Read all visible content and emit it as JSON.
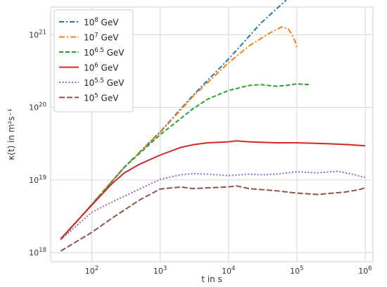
{
  "chart_data": {
    "type": "line",
    "xscale": "log",
    "yscale": "log",
    "xlabel": "t in s",
    "ylabel": "κ(t) in m²s⁻¹",
    "xlim": [
      25,
      1300000
    ],
    "ylim": [
      750000000000000000,
      2400000000000000000000
    ],
    "grid": true,
    "legend_position": "top-left",
    "x_ticks": [
      {
        "value": 100,
        "base": "10",
        "exp": "2"
      },
      {
        "value": 1000,
        "base": "10",
        "exp": "3"
      },
      {
        "value": 10000,
        "base": "10",
        "exp": "4"
      },
      {
        "value": 100000,
        "base": "10",
        "exp": "5"
      },
      {
        "value": 1000000,
        "base": "10",
        "exp": "6"
      }
    ],
    "y_ticks": [
      {
        "value": 1e+18,
        "base": "10",
        "exp": "18"
      },
      {
        "value": 1e+19,
        "base": "10",
        "exp": "19"
      },
      {
        "value": 1e+20,
        "base": "10",
        "exp": "20"
      },
      {
        "value": 1e+21,
        "base": "10",
        "exp": "21"
      }
    ],
    "series": [
      {
        "name": "10^8 GeV",
        "label_base": "10",
        "label_exp": "8",
        "label_unit": " GeV",
        "color": "#1f77b4",
        "dash": "7,3,2,3",
        "width": 2,
        "points": [
          [
            35,
            1.5e+18
          ],
          [
            100,
            4.6e+18
          ],
          [
            300,
            1.5e+19
          ],
          [
            1000,
            4.6e+19
          ],
          [
            3000,
            1.45e+20
          ],
          [
            10000,
            4.6e+20
          ],
          [
            30000,
            1.45e+21
          ],
          [
            70000,
            3e+21
          ]
        ]
      },
      {
        "name": "10^7 GeV",
        "label_base": "10",
        "label_exp": "7",
        "label_unit": " GeV",
        "color": "#ff7f0e",
        "dash": "8,3,2,3",
        "width": 2,
        "points": [
          [
            35,
            1.5e+18
          ],
          [
            100,
            4.6e+18
          ],
          [
            300,
            1.5e+19
          ],
          [
            1000,
            4.5e+19
          ],
          [
            3000,
            1.4e+20
          ],
          [
            10000,
            4.1e+20
          ],
          [
            20000,
            7e+20
          ],
          [
            40000,
            1.05e+21
          ],
          [
            60000,
            1.28e+21
          ],
          [
            75000,
            1.2e+21
          ],
          [
            85000,
            1e+21
          ],
          [
            95000,
            8e+20
          ],
          [
            100000,
            6.5e+20
          ]
        ]
      },
      {
        "name": "10^6.5 GeV",
        "label_base": "10",
        "label_exp": "6.5",
        "label_unit": " GeV",
        "color": "#2ca02c",
        "dash": "6,3",
        "width": 2,
        "points": [
          [
            35,
            1.5e+18
          ],
          [
            100,
            4.6e+18
          ],
          [
            300,
            1.5e+19
          ],
          [
            1000,
            4.2e+19
          ],
          [
            2000,
            7e+19
          ],
          [
            3000,
            9.5e+19
          ],
          [
            5000,
            1.3e+20
          ],
          [
            10000,
            1.7e+20
          ],
          [
            20000,
            2e+20
          ],
          [
            30000,
            2.05e+20
          ],
          [
            50000,
            1.95e+20
          ],
          [
            70000,
            2e+20
          ],
          [
            100000,
            2.1e+20
          ],
          [
            150000,
            2.05e+20
          ]
        ]
      },
      {
        "name": "10^6 GeV",
        "label_base": "10",
        "label_exp": "6",
        "label_unit": " GeV",
        "color": "#d62728",
        "dash": "",
        "width": 2,
        "points": [
          [
            35,
            1.55e+18
          ],
          [
            100,
            4.5e+18
          ],
          [
            200,
            9e+18
          ],
          [
            300,
            1.25e+19
          ],
          [
            500,
            1.65e+19
          ],
          [
            1000,
            2.2e+19
          ],
          [
            2000,
            2.8e+19
          ],
          [
            3000,
            3.05e+19
          ],
          [
            5000,
            3.25e+19
          ],
          [
            10000,
            3.35e+19
          ],
          [
            13000,
            3.45e+19
          ],
          [
            20000,
            3.35e+19
          ],
          [
            50000,
            3.25e+19
          ],
          [
            100000,
            3.25e+19
          ],
          [
            300000,
            3.15e+19
          ],
          [
            600000,
            3.05e+19
          ],
          [
            1000000,
            2.95e+19
          ]
        ]
      },
      {
        "name": "10^5.5 GeV",
        "label_base": "10",
        "label_exp": "5.5",
        "label_unit": " GeV",
        "color": "#9467bd",
        "dash": "2,2.5",
        "width": 2,
        "points": [
          [
            35,
            1.5e+18
          ],
          [
            100,
            3.6e+18
          ],
          [
            200,
            5e+18
          ],
          [
            500,
            7.5e+18
          ],
          [
            1000,
            1.02e+19
          ],
          [
            2000,
            1.18e+19
          ],
          [
            3000,
            1.22e+19
          ],
          [
            5000,
            1.2e+19
          ],
          [
            10000,
            1.15e+19
          ],
          [
            20000,
            1.2e+19
          ],
          [
            30000,
            1.18e+19
          ],
          [
            50000,
            1.2e+19
          ],
          [
            100000,
            1.3e+19
          ],
          [
            200000,
            1.25e+19
          ],
          [
            400000,
            1.32e+19
          ],
          [
            700000,
            1.18e+19
          ],
          [
            1000000,
            1.08e+19
          ]
        ]
      },
      {
        "name": "10^5 GeV",
        "label_base": "10",
        "label_exp": "5",
        "label_unit": " GeV",
        "color": "#8c564b",
        "dash": "8,3",
        "width": 2,
        "points": [
          [
            35,
            1.05e+18
          ],
          [
            100,
            1.9e+18
          ],
          [
            200,
            3e+18
          ],
          [
            500,
            5.3e+18
          ],
          [
            1000,
            7.5e+18
          ],
          [
            2000,
            8e+18
          ],
          [
            3000,
            7.6e+18
          ],
          [
            5000,
            7.8e+18
          ],
          [
            10000,
            8e+18
          ],
          [
            13000,
            8.3e+18
          ],
          [
            20000,
            7.6e+18
          ],
          [
            50000,
            7.1e+18
          ],
          [
            100000,
            6.6e+18
          ],
          [
            200000,
            6.3e+18
          ],
          [
            500000,
            6.8e+18
          ],
          [
            800000,
            7.3e+18
          ],
          [
            1000000,
            7.8e+18
          ]
        ]
      }
    ]
  }
}
